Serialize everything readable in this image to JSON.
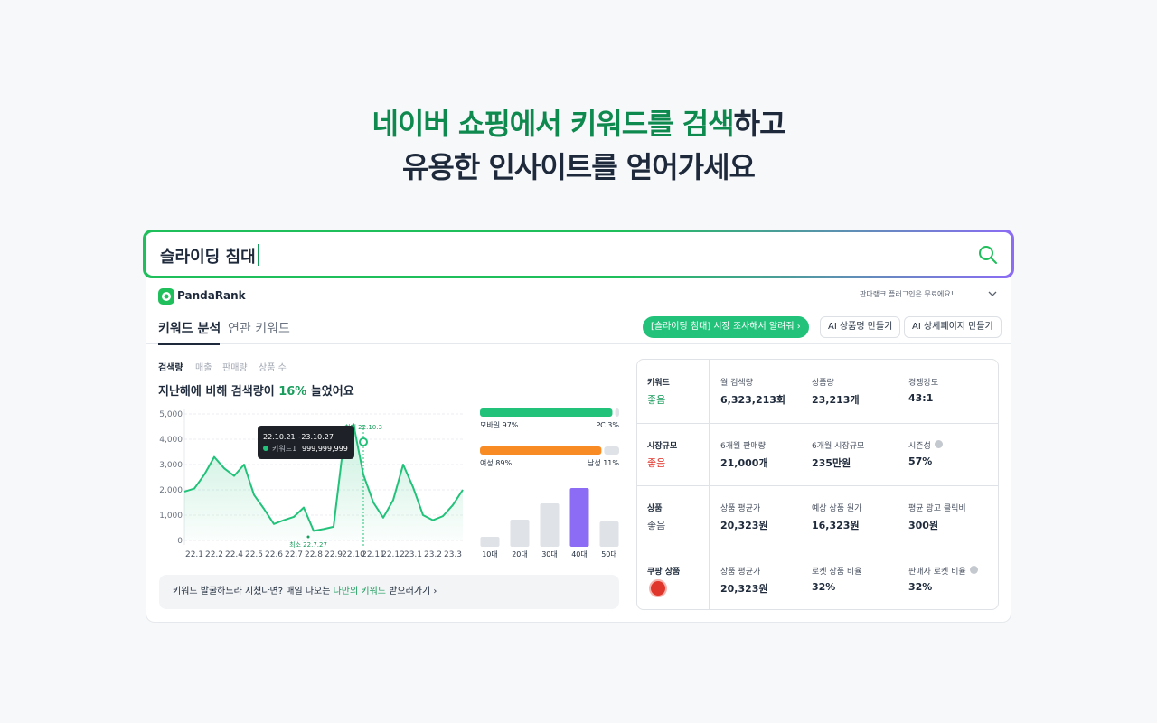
{
  "hero": {
    "title_green": "네이버 쇼핑에서 키워드를 검색",
    "title_dark": "하고",
    "subtitle": "유용한 인사이트를 얻어가세요"
  },
  "search": {
    "query": "슬라이딩 침대"
  },
  "app": {
    "brand": "PandaRank",
    "plugin_note": "판다랭크 플러그인은 무료에요!",
    "tabs": [
      "키워드 분석",
      "연관 키워드"
    ],
    "buttons": [
      "[슬라이딩 침대] 시장 조사해서 알려줘",
      "AI 상품명 만들기",
      "AI 상세페이지 만들기"
    ],
    "metric_tabs": [
      "검색량",
      "매출",
      "판매량",
      "상품 수"
    ],
    "headline": [
      "지난해에 비해 검색량이 ",
      "16%",
      " 늘었어요"
    ],
    "banner": [
      "키워드 발굴하느라 지쳤다면? 매일 나오는 ",
      "나만의 키워드",
      " 받으러가기"
    ]
  },
  "chart_data": [
    {
      "type": "line",
      "color": "#22c27a",
      "categories": [
        null,
        "22.1",
        null,
        "22.2",
        null,
        "22.4",
        null,
        "22.5",
        null,
        "22.6",
        null,
        "22.7",
        null,
        "22.8",
        null,
        "22.9",
        null,
        "22.10",
        null,
        "22.11",
        null,
        "22.12",
        null,
        "23.1",
        null,
        "23.2",
        null,
        "23.3",
        null
      ],
      "values": [
        1930,
        2050,
        2600,
        3300,
        2850,
        2550,
        3000,
        1800,
        1250,
        650,
        800,
        930,
        1300,
        380,
        450,
        540,
        3800,
        4600,
        2600,
        1500,
        900,
        1600,
        3000,
        2100,
        1000,
        800,
        960,
        1400,
        2000
      ],
      "ylim": [
        0,
        5000
      ],
      "yticks": [
        0,
        {
          "value": 1000,
          "label": "1,000"
        },
        {
          "value": 2000,
          "label": "2,000"
        },
        {
          "value": 3000,
          "label": "3,000"
        },
        {
          "value": 4000,
          "label": "4,000"
        },
        {
          "value": 5000,
          "label": "5,000"
        }
      ],
      "grid": true,
      "annotations": {
        "max": "최대 22.10.3",
        "min": "최소 22.7.27"
      },
      "tooltip": {
        "range": "22.10.21~23.10.27",
        "series": "키워드1",
        "value": "999,999,999"
      }
    },
    {
      "type": "stacked-share",
      "categories": [
        "모바일",
        "PC"
      ],
      "values": [
        97,
        3
      ],
      "value_labels": [
        "모바일 97%",
        "PC 3%"
      ],
      "colors": [
        "#22c27a",
        "#dfe2e6"
      ]
    },
    {
      "type": "stacked-share",
      "categories": [
        "여성",
        "남성"
      ],
      "values": [
        89,
        11
      ],
      "value_labels": [
        "여성 89%",
        "남성 11%"
      ],
      "colors": [
        "#f98b25",
        "#dfe2e6"
      ]
    },
    {
      "type": "bar",
      "categories": [
        "10대",
        "20대",
        "30대",
        "40대",
        "50대"
      ],
      "values": [
        11,
        30,
        48,
        65,
        28
      ],
      "colors": [
        "#dfe2e6",
        "#dfe2e6",
        "#dfe2e6",
        "#8c6cf5",
        "#dfe2e6"
      ]
    }
  ],
  "table": {
    "rows": [
      {
        "label": "키워드",
        "status": "좋음",
        "status_color": "#1a9c5c",
        "cells": [
          {
            "label": "월 검색량",
            "value": "6,323,213회"
          },
          {
            "label": "상품량",
            "value": "23,213개"
          },
          {
            "label": "경쟁강도",
            "value": "43:1"
          }
        ]
      },
      {
        "label": "시장규모",
        "status": "좋음",
        "status_color": "#e0352b",
        "cells": [
          {
            "label": "6개월 판매량",
            "value": "21,000개"
          },
          {
            "label": "6개월 시장규모",
            "value": "235만원"
          },
          {
            "label": "시즌성",
            "value": "57%"
          }
        ]
      },
      {
        "label": "상품",
        "status": "좋음",
        "status_color": "#4a5261",
        "cells": [
          {
            "label": "상품 평균가",
            "value": "20,323원"
          },
          {
            "label": "예상 상품 원가",
            "value": "16,323원"
          },
          {
            "label": "평균 광고 클릭비",
            "value": "300원"
          }
        ]
      },
      {
        "label": "쿠팡 상품",
        "status": null,
        "status_color": null,
        "cells": [
          {
            "label": "상품 평균가",
            "value": "20,323원"
          },
          {
            "label": "로켓 상품 비율",
            "value": "32%"
          },
          {
            "label": "판매자 로켓 비율",
            "value": "32%"
          }
        ]
      }
    ]
  }
}
